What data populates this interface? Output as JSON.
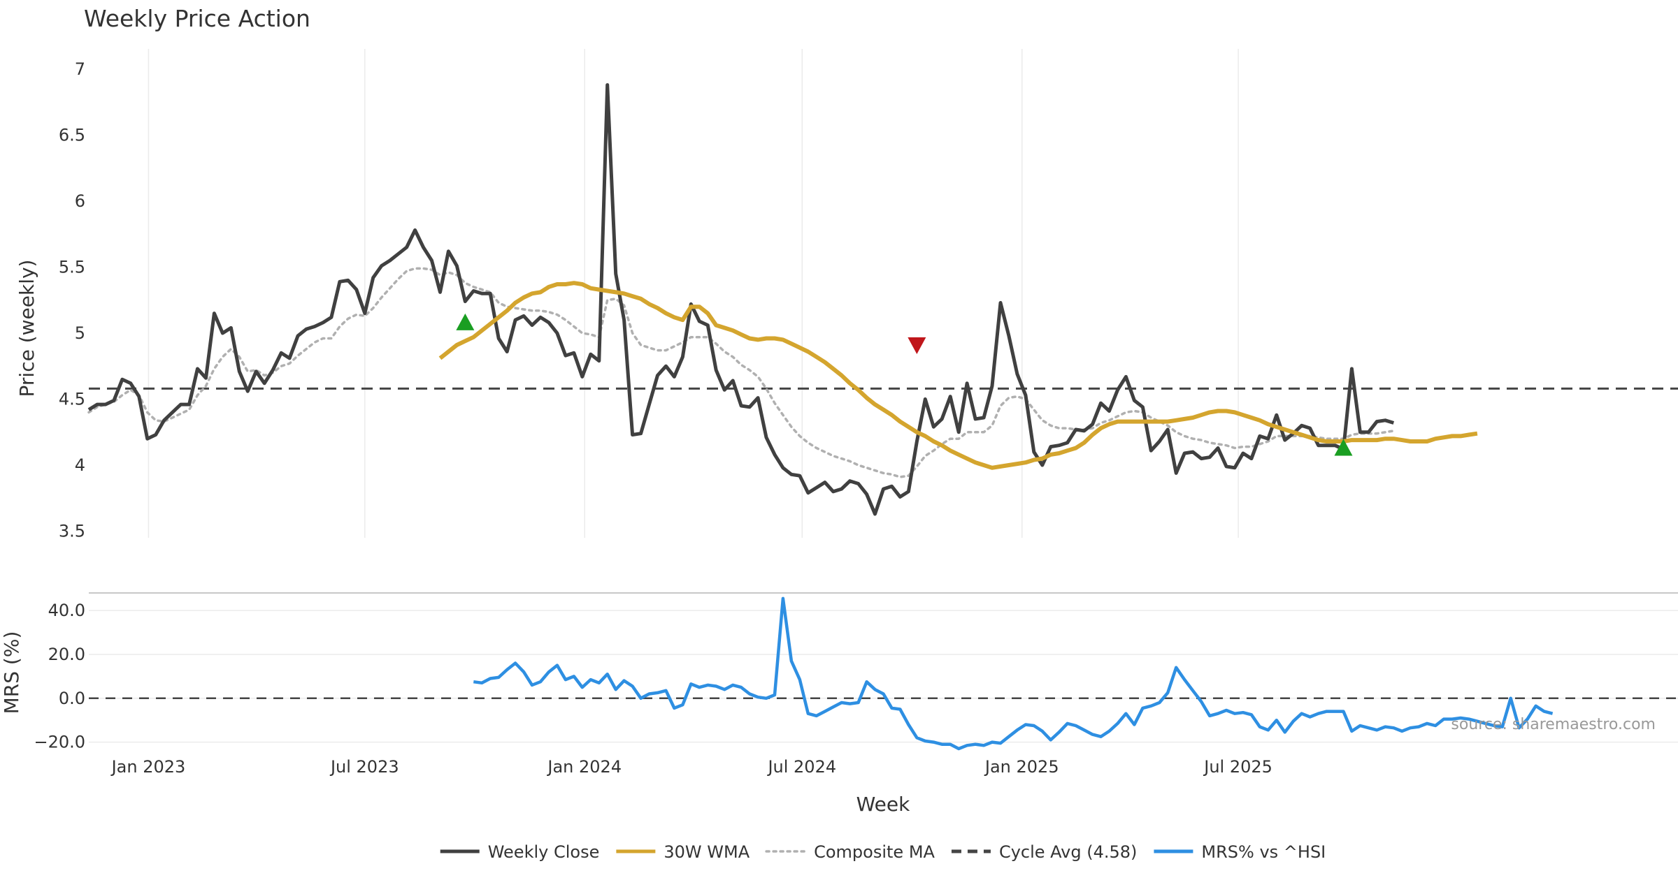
{
  "chart_data": [
    {
      "type": "line",
      "title": "Weekly Price Action",
      "xlabel": "Week",
      "ylabel": "Price (weekly)",
      "ylim": [
        3.45,
        7.1
      ],
      "yticks": [
        3.5,
        4,
        4.5,
        5,
        5.5,
        6,
        6.5,
        7
      ],
      "ytick_labels": [
        "3.5",
        "4",
        "4.5",
        "5",
        "5.5",
        "6",
        "6.5",
        "7"
      ],
      "x_start": "2022-11-12",
      "x_step_days": 7,
      "grid": true,
      "series": [
        {
          "name": "Weekly Close",
          "color": "#404040",
          "values": [
            4.42,
            4.46,
            4.46,
            4.49,
            4.65,
            4.62,
            4.52,
            4.2,
            4.23,
            4.34,
            4.4,
            4.46,
            4.46,
            4.73,
            4.66,
            5.15,
            5.0,
            5.04,
            4.71,
            4.56,
            4.71,
            4.62,
            4.72,
            4.85,
            4.81,
            4.98,
            5.03,
            5.05,
            5.08,
            5.12,
            5.39,
            5.4,
            5.33,
            5.15,
            5.42,
            5.51,
            5.55,
            5.6,
            5.65,
            5.78,
            5.65,
            5.55,
            5.31,
            5.62,
            5.51,
            5.24,
            5.32,
            5.3,
            5.3,
            4.96,
            4.86,
            5.1,
            5.13,
            5.06,
            5.12,
            5.08,
            5.0,
            4.83,
            4.85,
            4.67,
            4.84,
            4.79,
            6.88,
            5.45,
            5.1,
            4.23,
            4.24,
            4.46,
            4.68,
            4.75,
            4.67,
            4.82,
            5.22,
            5.09,
            5.06,
            4.72,
            4.57,
            4.64,
            4.45,
            4.44,
            4.51,
            4.21,
            4.08,
            3.98,
            3.93,
            3.92,
            3.79,
            3.83,
            3.87,
            3.8,
            3.82,
            3.88,
            3.86,
            3.78,
            3.63,
            3.82,
            3.84,
            3.76,
            3.8,
            4.18,
            4.5,
            4.29,
            4.35,
            4.52,
            4.25,
            4.62,
            4.35,
            4.36,
            4.6,
            5.23,
            4.98,
            4.69,
            4.53,
            4.1,
            4.0,
            4.14,
            4.15,
            4.17,
            4.27,
            4.26,
            4.31,
            4.47,
            4.41,
            4.57,
            4.67,
            4.49,
            4.44,
            4.11,
            4.18,
            4.27,
            3.94,
            4.09,
            4.1,
            4.05,
            4.06,
            4.13,
            3.99,
            3.98,
            4.09,
            4.05,
            4.22,
            4.2,
            4.38,
            4.19,
            4.24,
            4.3,
            4.28,
            4.15,
            4.15,
            4.15,
            4.12,
            4.73,
            4.25,
            4.25,
            4.33,
            4.34,
            4.32
          ]
        },
        {
          "name": "30W WMA",
          "color": "#d4a52e",
          "start_index": 42,
          "values": [
            4.81,
            4.86,
            4.91,
            4.94,
            4.97,
            5.02,
            5.07,
            5.12,
            5.17,
            5.23,
            5.27,
            5.3,
            5.31,
            5.35,
            5.37,
            5.37,
            5.38,
            5.37,
            5.34,
            5.33,
            5.32,
            5.31,
            5.3,
            5.28,
            5.26,
            5.22,
            5.19,
            5.15,
            5.12,
            5.1,
            5.2,
            5.2,
            5.15,
            5.06,
            5.04,
            5.02,
            4.99,
            4.96,
            4.95,
            4.96,
            4.96,
            4.95,
            4.92,
            4.89,
            4.86,
            4.82,
            4.78,
            4.73,
            4.68,
            4.62,
            4.57,
            4.51,
            4.46,
            4.42,
            4.38,
            4.33,
            4.29,
            4.25,
            4.22,
            4.18,
            4.15,
            4.11,
            4.08,
            4.05,
            4.02,
            4.0,
            3.98,
            3.99,
            4.0,
            4.01,
            4.02,
            4.04,
            4.05,
            4.08,
            4.09,
            4.11,
            4.13,
            4.17,
            4.23,
            4.28,
            4.31,
            4.33,
            4.33,
            4.33,
            4.33,
            4.33,
            4.33,
            4.33,
            4.34,
            4.35,
            4.36,
            4.38,
            4.4,
            4.41,
            4.41,
            4.4,
            4.38,
            4.36,
            4.34,
            4.31,
            4.29,
            4.27,
            4.25,
            4.23,
            4.21,
            4.19,
            4.18,
            4.18,
            4.18,
            4.19,
            4.19,
            4.19,
            4.19,
            4.2,
            4.2,
            4.19,
            4.18,
            4.18,
            4.18,
            4.2,
            4.21,
            4.22,
            4.22,
            4.23,
            4.24
          ]
        },
        {
          "name": "Composite MA",
          "color": "#b0b0b0",
          "values": [
            4.4,
            4.44,
            4.46,
            4.48,
            4.53,
            4.57,
            4.53,
            4.4,
            4.34,
            4.33,
            4.36,
            4.39,
            4.42,
            4.53,
            4.6,
            4.73,
            4.82,
            4.88,
            4.82,
            4.71,
            4.72,
            4.68,
            4.7,
            4.75,
            4.77,
            4.83,
            4.88,
            4.93,
            4.96,
            4.96,
            5.05,
            5.11,
            5.14,
            5.13,
            5.19,
            5.27,
            5.34,
            5.41,
            5.47,
            5.49,
            5.49,
            5.48,
            5.44,
            5.46,
            5.44,
            5.38,
            5.35,
            5.33,
            5.31,
            5.23,
            5.2,
            5.19,
            5.18,
            5.17,
            5.17,
            5.16,
            5.14,
            5.1,
            5.05,
            5.0,
            4.99,
            4.97,
            5.25,
            5.26,
            5.21,
            5.0,
            4.91,
            4.89,
            4.87,
            4.87,
            4.9,
            4.93,
            4.97,
            4.97,
            4.97,
            4.92,
            4.86,
            4.82,
            4.76,
            4.72,
            4.67,
            4.58,
            4.47,
            4.38,
            4.29,
            4.22,
            4.17,
            4.13,
            4.1,
            4.07,
            4.05,
            4.03,
            4.0,
            3.98,
            3.96,
            3.94,
            3.93,
            3.91,
            3.92,
            3.99,
            4.07,
            4.11,
            4.16,
            4.2,
            4.2,
            4.25,
            4.25,
            4.25,
            4.3,
            4.45,
            4.51,
            4.52,
            4.5,
            4.42,
            4.34,
            4.3,
            4.28,
            4.28,
            4.27,
            4.27,
            4.28,
            4.32,
            4.34,
            4.37,
            4.4,
            4.41,
            4.4,
            4.36,
            4.33,
            4.3,
            4.25,
            4.22,
            4.2,
            4.19,
            4.17,
            4.16,
            4.15,
            4.13,
            4.14,
            4.14,
            4.16,
            4.18,
            4.22,
            4.22,
            4.22,
            4.22,
            4.22,
            4.21,
            4.2,
            4.2,
            4.2,
            4.23,
            4.24,
            4.24,
            4.24,
            4.25,
            4.26
          ]
        }
      ],
      "reference_line": {
        "name": "Cycle Avg (4.58)",
        "value": 4.58,
        "color": "#444444"
      },
      "markers": [
        {
          "type": "buy",
          "index": 45,
          "value": 5.08,
          "color": "#1a9e22"
        },
        {
          "type": "sell",
          "index": 99,
          "value": 4.91,
          "color": "#c0161b"
        },
        {
          "type": "buy",
          "index": 150,
          "value": 4.13,
          "color": "#1a9e22"
        }
      ],
      "legend_placement": "bottom-center"
    },
    {
      "type": "line",
      "xlabel": "Week",
      "ylabel": "MRS (%)",
      "ylim": [
        -23,
        48
      ],
      "yticks": [
        -20,
        0,
        20,
        40
      ],
      "ytick_labels": [
        "−20.0",
        "0.0",
        "20.0",
        "40.0"
      ],
      "grid": true,
      "x_tick_dates": [
        "2023-01-01",
        "2023-07-01",
        "2024-01-01",
        "2024-07-01",
        "2025-01-01",
        "2025-07-01"
      ],
      "x_tick_labels": [
        "Jan 2023",
        "Jul 2023",
        "Jan 2024",
        "Jul 2024",
        "Jan 2025",
        "Jul 2025"
      ],
      "series": [
        {
          "name": "MRS% vs ^HSI",
          "color": "#2e8fe2",
          "start_index": 46,
          "values": [
            7.5,
            7.0,
            9.0,
            9.5,
            13.0,
            16.0,
            12.0,
            6.0,
            7.5,
            12.0,
            15.0,
            8.5,
            10.0,
            5.0,
            8.5,
            7.0,
            11.0,
            4.0,
            8.0,
            5.5,
            0.0,
            2.0,
            2.5,
            3.5,
            -4.5,
            -3.0,
            6.5,
            5.0,
            6.0,
            5.5,
            4.0,
            6.0,
            5.0,
            2.0,
            0.5,
            0.0,
            1.5,
            45.5,
            17.0,
            8.5,
            -7.0,
            -8.0,
            -6.0,
            -4.0,
            -2.0,
            -2.5,
            -2.0,
            7.5,
            4.0,
            2.0,
            -4.5,
            -5.0,
            -12.0,
            -18.0,
            -19.5,
            -20.0,
            -21.0,
            -21.0,
            -23.0,
            -21.5,
            -21.0,
            -21.5,
            -20.0,
            -20.5,
            -17.5,
            -14.5,
            -12.0,
            -12.5,
            -15.0,
            -19.0,
            -15.5,
            -11.5,
            -12.5,
            -14.5,
            -16.5,
            -17.5,
            -15.0,
            -11.5,
            -7.0,
            -12.0,
            -4.5,
            -3.5,
            -2.0,
            2.5,
            14.0,
            8.5,
            3.5,
            -1.5,
            -8.0,
            -7.0,
            -5.5,
            -7.0,
            -6.5,
            -7.5,
            -13.0,
            -14.5,
            -10.0,
            -15.5,
            -10.5,
            -7.0,
            -8.5,
            -7.0,
            -6.0,
            -6.0,
            -6.0,
            -15.0,
            -12.5,
            -13.5,
            -14.5,
            -13.0,
            -13.5,
            -15.0,
            -13.5,
            -13.0,
            -11.5,
            -12.5,
            -9.5,
            -9.5,
            -9.0,
            -9.5,
            -10.5,
            -11.5,
            -12.5,
            -13.0,
            0.0,
            -13.5,
            -9.5,
            -3.5,
            -6.0,
            -7.0
          ]
        }
      ],
      "reference_line": {
        "value": 0,
        "color": "#444444"
      },
      "annotation": "source: sharemaestro.com"
    }
  ],
  "legend": [
    {
      "label": "Weekly Close",
      "style": "solid",
      "color": "#404040"
    },
    {
      "label": "30W WMA",
      "style": "solid",
      "color": "#d4a52e"
    },
    {
      "label": "Composite MA",
      "style": "dotted",
      "color": "#b0b0b0"
    },
    {
      "label": "Cycle Avg (4.58)",
      "style": "dashed",
      "color": "#444444"
    },
    {
      "label": "MRS% vs ^HSI",
      "style": "solid",
      "color": "#2e8fe2"
    }
  ]
}
